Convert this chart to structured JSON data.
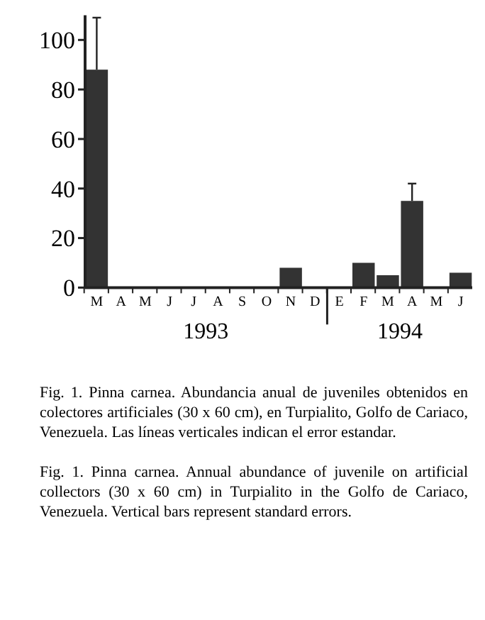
{
  "chart_data": {
    "type": "bar",
    "categories": [
      "M",
      "A",
      "M",
      "J",
      "J",
      "A",
      "S",
      "O",
      "N",
      "D",
      "E",
      "F",
      "M",
      "A",
      "M",
      "J"
    ],
    "values": [
      88,
      0,
      0,
      0,
      0,
      0,
      0,
      0,
      8,
      0,
      0,
      10,
      5,
      35,
      0,
      6
    ],
    "errors": [
      21,
      null,
      null,
      null,
      null,
      null,
      null,
      null,
      null,
      null,
      null,
      null,
      null,
      7,
      null,
      null
    ],
    "color": "#333333",
    "ylim": [
      0,
      110
    ],
    "yticks": [
      0,
      20,
      40,
      60,
      80,
      100
    ],
    "grid": false,
    "annotations": [
      "1993",
      "1994",
      "Fig. 1. Pinna carnea. Abundancia anual de juveniles obtenidos en colectores artificiales (30 x 60 cm), en Turpialito, Golfo de Cariaco, Venezuela. Las líneas verticales indican el error estandar.",
      "Fig. 1. Pinna carnea. Annual abundance of juvenile on artificial collectors (30 x 60 cm) in Turpialito in the Golfo de Cariaco, Venezuela. Vertical bars represent standard errors."
    ]
  }
}
